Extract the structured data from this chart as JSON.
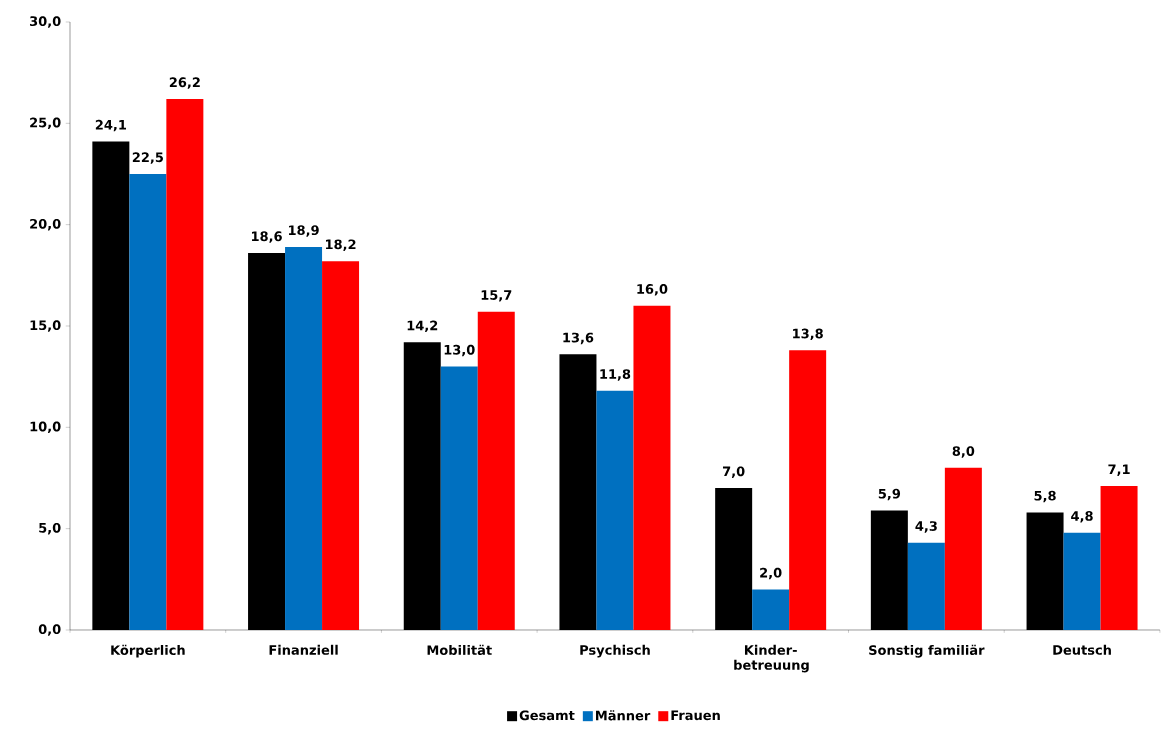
{
  "chart_data": {
    "type": "bar",
    "categories": [
      "Körperlich",
      "Finanziell",
      "Mobilität",
      "Psychisch",
      "Kinder-betreuung",
      "Sonstig familiär",
      "Deutsch"
    ],
    "series": [
      {
        "name": "Gesamt",
        "color": "#000000",
        "values": [
          24.1,
          18.6,
          14.2,
          13.6,
          7.0,
          5.9,
          5.8
        ],
        "value_labels": [
          "24,1",
          "18,6",
          "14,2",
          "13,6",
          "7,0",
          "5,9",
          "5,8"
        ]
      },
      {
        "name": "Männer",
        "color": "#0070c0",
        "values": [
          22.5,
          18.9,
          13.0,
          11.8,
          2.0,
          4.3,
          4.8
        ],
        "value_labels": [
          "22,5",
          "18,9",
          "13,0",
          "11,8",
          "2,0",
          "4,3",
          "4,8"
        ]
      },
      {
        "name": "Frauen",
        "color": "#ff0000",
        "values": [
          26.2,
          18.2,
          15.7,
          16.0,
          13.8,
          8.0,
          7.1
        ],
        "value_labels": [
          "26,2",
          "18,2",
          "15,7",
          "16,0",
          "13,8",
          "8,0",
          "7,1"
        ]
      }
    ],
    "ylim": [
      0,
      30
    ],
    "yticks": [
      {
        "value": 0,
        "label": "0,0"
      },
      {
        "value": 5,
        "label": "5,0"
      },
      {
        "value": 10,
        "label": "10,0"
      },
      {
        "value": 15,
        "label": "15,0"
      },
      {
        "value": 20,
        "label": "20,0"
      },
      {
        "value": 25,
        "label": "25,0"
      },
      {
        "value": 30,
        "label": "30,0"
      }
    ],
    "grid": false,
    "legend": "bottom"
  }
}
